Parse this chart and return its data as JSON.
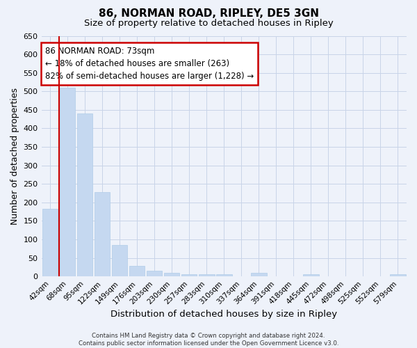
{
  "title_line1": "86, NORMAN ROAD, RIPLEY, DE5 3GN",
  "title_line2": "Size of property relative to detached houses in Ripley",
  "xlabel": "Distribution of detached houses by size in Ripley",
  "ylabel": "Number of detached properties",
  "bar_labels": [
    "42sqm",
    "68sqm",
    "95sqm",
    "122sqm",
    "149sqm",
    "176sqm",
    "203sqm",
    "230sqm",
    "257sqm",
    "283sqm",
    "310sqm",
    "337sqm",
    "364sqm",
    "391sqm",
    "418sqm",
    "445sqm",
    "472sqm",
    "498sqm",
    "525sqm",
    "552sqm",
    "579sqm"
  ],
  "bar_values": [
    182,
    510,
    440,
    227,
    85,
    28,
    15,
    9,
    6,
    6,
    6,
    0,
    9,
    0,
    0,
    6,
    0,
    0,
    0,
    0,
    6
  ],
  "bar_color": "#c5d8f0",
  "bar_edge_color": "#b0cce8",
  "annotation_title": "86 NORMAN ROAD: 73sqm",
  "annotation_line2": "← 18% of detached houses are smaller (263)",
  "annotation_line3": "82% of semi-detached houses are larger (1,228) →",
  "annotation_box_color": "#ffffff",
  "annotation_box_edge": "#cc0000",
  "vline_color": "#cc0000",
  "grid_color": "#c8d4e8",
  "ylim": [
    0,
    650
  ],
  "yticks": [
    0,
    50,
    100,
    150,
    200,
    250,
    300,
    350,
    400,
    450,
    500,
    550,
    600,
    650
  ],
  "footer_line1": "Contains HM Land Registry data © Crown copyright and database right 2024.",
  "footer_line2": "Contains public sector information licensed under the Open Government Licence v3.0.",
  "bg_color": "#eef2fa"
}
